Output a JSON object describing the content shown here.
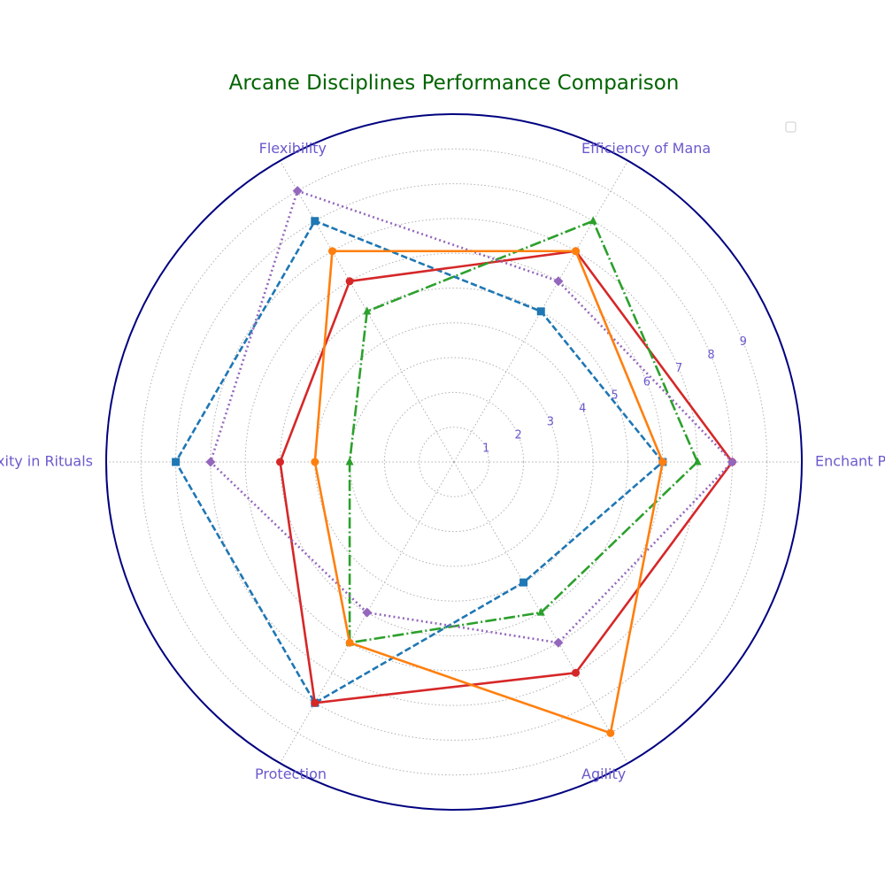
{
  "chart_data": {
    "type": "radar",
    "title": "Arcane Disciplines Performance Comparison",
    "axes": [
      "Enchant Power",
      "Efficiency of Mana",
      "Flexibility",
      "Complexity in Rituals",
      "Protection",
      "Agility"
    ],
    "rlim": [
      0,
      10
    ],
    "radial_ticks": [
      1,
      2,
      3,
      4,
      5,
      6,
      7,
      8,
      9
    ],
    "grid": true,
    "legend": "top-right",
    "series": [
      {
        "values": [
          6,
          5,
          8,
          8,
          8,
          4
        ],
        "color": "#1f77b4",
        "linestyle": "dashed",
        "marker": "square"
      },
      {
        "values": [
          8,
          7,
          6,
          5,
          8,
          7
        ],
        "color": "#d62728",
        "linestyle": "solid",
        "marker": "circle"
      },
      {
        "values": [
          7,
          8,
          5,
          3,
          6,
          5
        ],
        "color": "#2ca02c",
        "linestyle": "dashdot",
        "marker": "triangle"
      },
      {
        "values": [
          8,
          6,
          9,
          7,
          5,
          6
        ],
        "color": "#9467bd",
        "linestyle": "dotted",
        "marker": "diamond"
      },
      {
        "values": [
          6,
          7,
          7,
          4,
          6,
          9
        ],
        "color": "#ff7f0e",
        "linestyle": "solid",
        "marker": "circle"
      }
    ],
    "colors": {
      "title": "#006400",
      "labels": "#6a5acd",
      "frame": "#000080",
      "grid": "#b0b0b0"
    }
  }
}
